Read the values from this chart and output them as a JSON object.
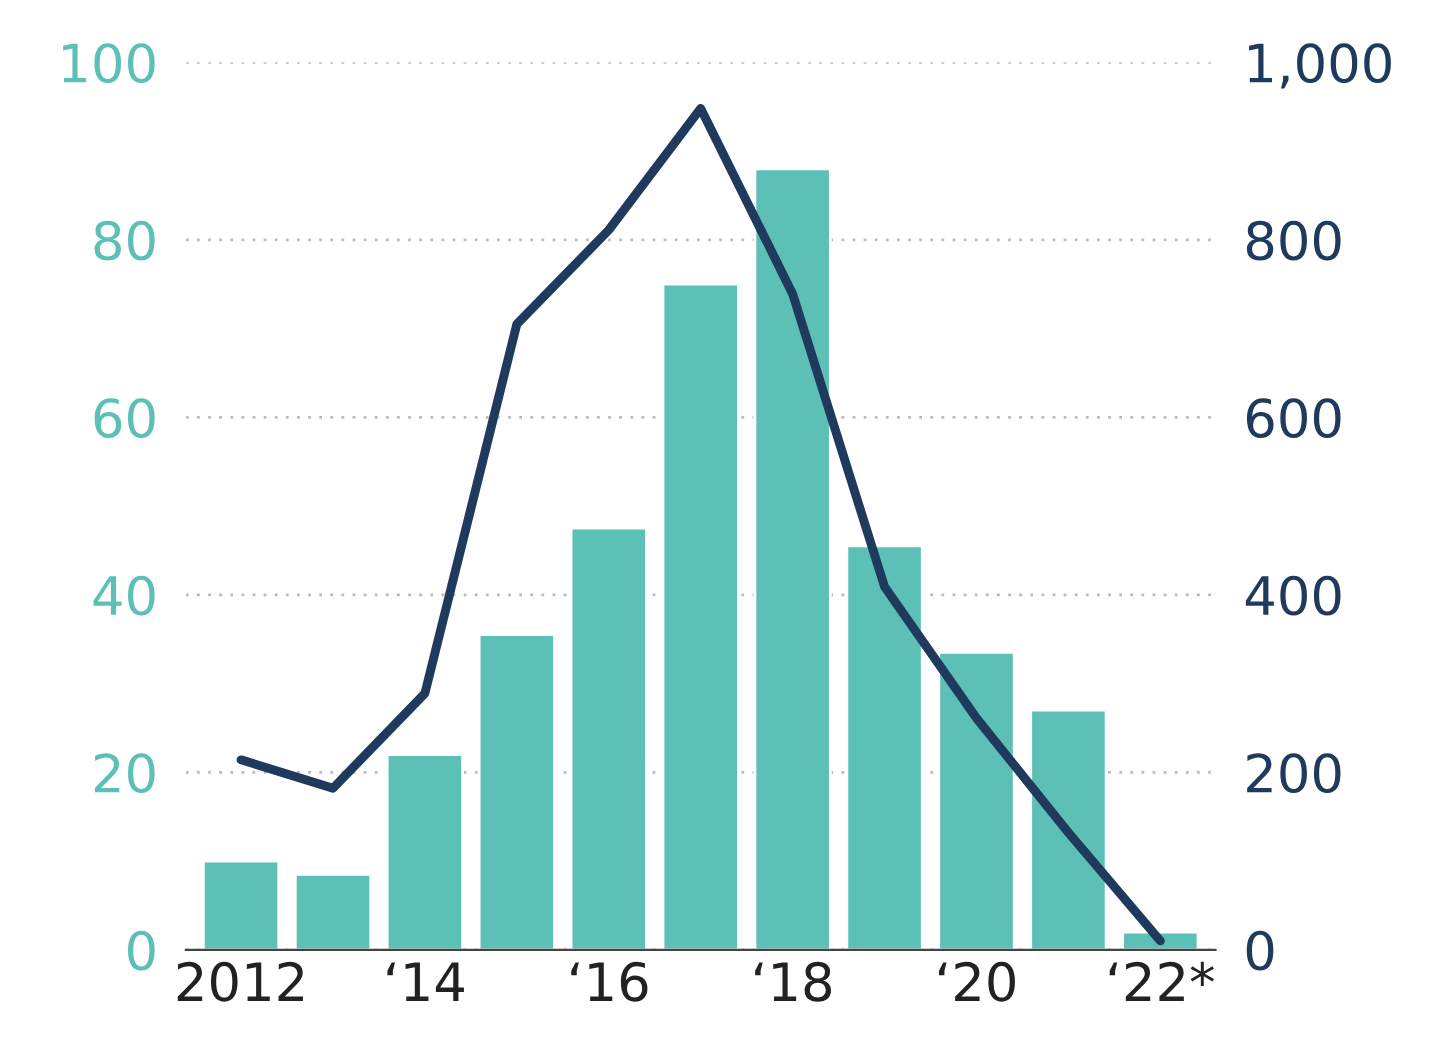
{
  "chart_data": {
    "type": "bar",
    "categories": [
      "2012",
      null,
      "‘14",
      null,
      "‘16",
      null,
      "‘18",
      null,
      "‘20",
      null,
      "‘22*"
    ],
    "series": [
      {
        "color": "#5dc0b7",
        "values": [
          10,
          8.5,
          22,
          35.5,
          47.5,
          75,
          88,
          45.5,
          33.5,
          27,
          2
        ]
      },
      {
        "type": "line",
        "axis": "y2",
        "color": "#1f3a5c",
        "values": [
          214,
          182,
          289,
          705,
          811,
          948,
          739,
          409,
          261,
          132,
          10
        ]
      }
    ],
    "ylim": [
      0,
      100
    ],
    "yticks": [
      0,
      20,
      40,
      60,
      80,
      100
    ],
    "y2lim": [
      0,
      1000
    ],
    "y2ticks": [
      0,
      200,
      400,
      600,
      800,
      {
        "value": 1000,
        "label": "1,000"
      }
    ],
    "grid": "y",
    "legend": false
  }
}
